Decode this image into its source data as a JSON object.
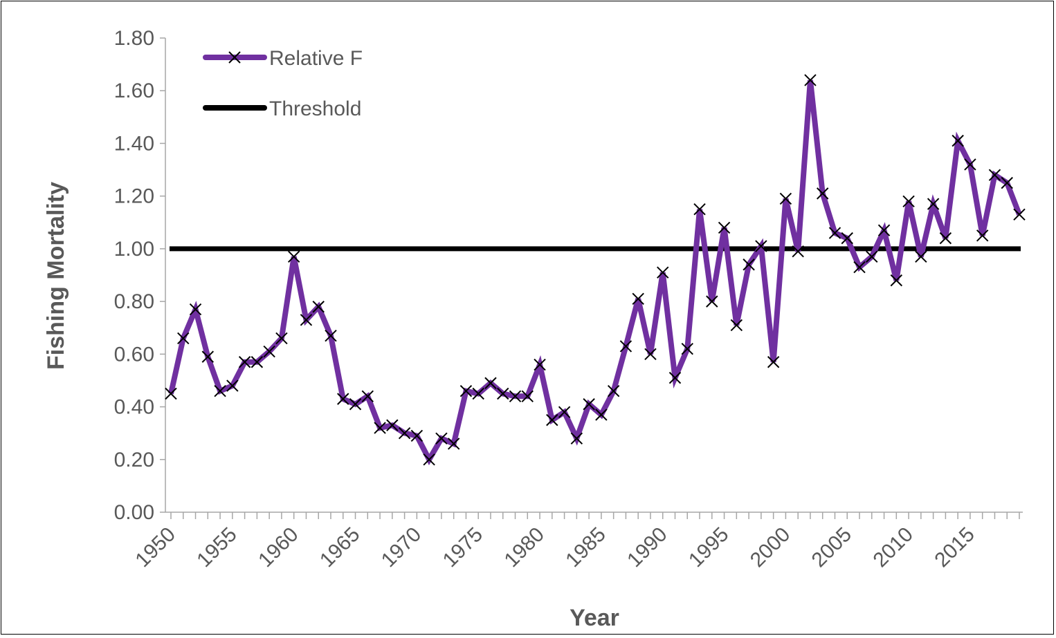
{
  "chart_data": {
    "type": "line",
    "title": "",
    "xlabel": "Year",
    "ylabel": "Fishing Mortality",
    "xlim": [
      1950,
      2019
    ],
    "ylim": [
      0,
      1.8
    ],
    "y_ticks": [
      "0.00",
      "0.20",
      "0.40",
      "0.60",
      "0.80",
      "1.00",
      "1.20",
      "1.40",
      "1.60",
      "1.80"
    ],
    "x_tick_labels": [
      "1950",
      "1955",
      "1960",
      "1965",
      "1970",
      "1975",
      "1980",
      "1985",
      "1990",
      "1995",
      "2000",
      "2005",
      "2010",
      "2015"
    ],
    "grid": false,
    "legend": {
      "position": "top-left"
    },
    "x": [
      1950,
      1951,
      1952,
      1953,
      1954,
      1955,
      1956,
      1957,
      1958,
      1959,
      1960,
      1961,
      1962,
      1963,
      1964,
      1965,
      1966,
      1967,
      1968,
      1969,
      1970,
      1971,
      1972,
      1973,
      1974,
      1975,
      1976,
      1977,
      1978,
      1979,
      1980,
      1981,
      1982,
      1983,
      1984,
      1985,
      1986,
      1987,
      1988,
      1989,
      1990,
      1991,
      1992,
      1993,
      1994,
      1995,
      1996,
      1997,
      1998,
      1999,
      2000,
      2001,
      2002,
      2003,
      2004,
      2005,
      2006,
      2007,
      2008,
      2009,
      2010,
      2011,
      2012,
      2013,
      2014,
      2015,
      2016,
      2017,
      2018,
      2019
    ],
    "series": [
      {
        "name": "Relative F",
        "color": "#7030A0",
        "marker": "x",
        "values": [
          0.45,
          0.66,
          0.77,
          0.59,
          0.46,
          0.48,
          0.57,
          0.57,
          0.61,
          0.66,
          0.97,
          0.73,
          0.78,
          0.67,
          0.43,
          0.41,
          0.44,
          0.32,
          0.33,
          0.3,
          0.29,
          0.2,
          0.28,
          0.26,
          0.46,
          0.45,
          0.49,
          0.45,
          0.44,
          0.44,
          0.56,
          0.35,
          0.38,
          0.28,
          0.41,
          0.37,
          0.46,
          0.63,
          0.81,
          0.6,
          0.91,
          0.51,
          0.62,
          1.15,
          0.8,
          1.08,
          0.71,
          0.94,
          1.01,
          0.57,
          1.19,
          0.99,
          1.64,
          1.21,
          1.06,
          1.04,
          0.93,
          0.97,
          1.07,
          0.88,
          1.18,
          0.97,
          1.17,
          1.04,
          1.41,
          1.32,
          1.05,
          1.28,
          1.25,
          1.13
        ]
      },
      {
        "name": "Threshold",
        "color": "#000000",
        "constant": 1.0
      }
    ]
  }
}
